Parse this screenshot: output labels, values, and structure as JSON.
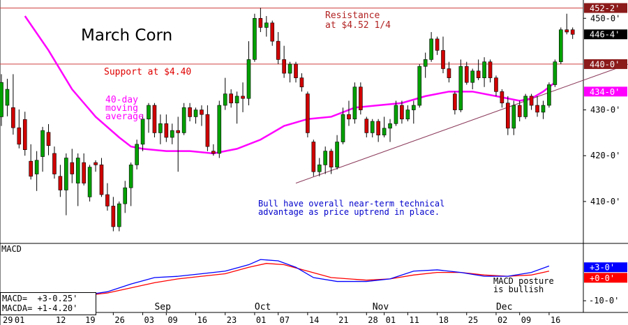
{
  "chart_data": {
    "type": "candlestick",
    "title": "March Corn",
    "annotations": {
      "resistance": "Resistance\nat $4.52 1/4",
      "support": "Support at $4.40",
      "ma_label": "40-day\nmoving\naverage",
      "commentary": "Bull have overall near-term technical\nadvantage as price uptrend in place.",
      "macd_comment": "MACD posture\nis bullish"
    },
    "price_axis": {
      "ticks": [
        {
          "label": "450-0'",
          "value": 450.0
        },
        {
          "label": "430-0'",
          "value": 430.0
        },
        {
          "label": "420-0'",
          "value": 420.0
        },
        {
          "label": "410-0'",
          "value": 410.0
        }
      ],
      "ylim": [
        401.0,
        454.0
      ]
    },
    "price_tags": [
      {
        "label": "452-2'",
        "value": 452.25,
        "color": "#8b1a1a"
      },
      {
        "label": "446-4'",
        "value": 446.5,
        "color": "#000000"
      },
      {
        "label": "440-0'",
        "value": 440.0,
        "color": "#8b1a1a"
      },
      {
        "label": "434-0'",
        "value": 434.0,
        "color": "#ff00ff"
      }
    ],
    "horizontal_lines": [
      {
        "name": "resistance",
        "value": 452.25,
        "color": "#d04040"
      },
      {
        "name": "support",
        "value": 440.0,
        "color": "#d04040"
      }
    ],
    "trendline": {
      "from": {
        "index": 50,
        "value": 414.0
      },
      "to": {
        "index": 88,
        "value": 431.5
      },
      "color": "#8b3a5a"
    },
    "x_axis": {
      "day_labels": [
        {
          "label": "29",
          "index": 0
        },
        {
          "label": "01",
          "index": 2
        },
        {
          "label": "12",
          "index": 9
        },
        {
          "label": "19",
          "index": 14
        },
        {
          "label": "26",
          "index": 19
        },
        {
          "label": "03",
          "index": 24
        },
        {
          "label": "09",
          "index": 28
        },
        {
          "label": "16",
          "index": 33
        },
        {
          "label": "23",
          "index": 38
        },
        {
          "label": "01",
          "index": 43
        },
        {
          "label": "07",
          "index": 47
        },
        {
          "label": "14",
          "index": 52
        },
        {
          "label": "21",
          "index": 57
        },
        {
          "label": "28",
          "index": 62
        },
        {
          "label": "01",
          "index": 65
        },
        {
          "label": "11",
          "index": 69
        },
        {
          "label": "18",
          "index": 74
        },
        {
          "label": "25",
          "index": 79
        },
        {
          "label": "02",
          "index": 84
        },
        {
          "label": "09",
          "index": 88
        },
        {
          "label": "16",
          "index": 93
        }
      ],
      "month_labels": [
        {
          "label": "Sep",
          "index": 26
        },
        {
          "label": "Oct",
          "index": 43
        },
        {
          "label": "Nov",
          "index": 63
        },
        {
          "label": "Dec",
          "index": 84
        }
      ]
    },
    "candles": [
      {
        "o": 428.5,
        "h": 437.8,
        "l": 426.5,
        "c": 436.0
      },
      {
        "o": 431.0,
        "h": 436.8,
        "l": 428.6,
        "c": 434.5
      },
      {
        "o": 430.5,
        "h": 437.8,
        "l": 424.6,
        "c": 426.1
      },
      {
        "o": 426.1,
        "h": 430.1,
        "l": 421.6,
        "c": 422.5
      },
      {
        "o": 427.9,
        "h": 429.6,
        "l": 420.0,
        "c": 421.3
      },
      {
        "o": 418.8,
        "h": 422.5,
        "l": 414.8,
        "c": 415.5
      },
      {
        "o": 416.0,
        "h": 421.0,
        "l": 412.3,
        "c": 419.0
      },
      {
        "o": 419.8,
        "h": 426.3,
        "l": 416.5,
        "c": 425.5
      },
      {
        "o": 425.1,
        "h": 426.9,
        "l": 420.1,
        "c": 422.2
      },
      {
        "o": 420.5,
        "h": 422.0,
        "l": 415.0,
        "c": 416.0
      },
      {
        "o": 415.5,
        "h": 418.0,
        "l": 411.0,
        "c": 412.5
      },
      {
        "o": 412.5,
        "h": 420.5,
        "l": 407.0,
        "c": 419.5
      },
      {
        "o": 418.5,
        "h": 421.5,
        "l": 414.0,
        "c": 416.0
      },
      {
        "o": 414.0,
        "h": 420.5,
        "l": 409.0,
        "c": 419.5
      },
      {
        "o": 418.5,
        "h": 420.5,
        "l": 413.5,
        "c": 414.0
      },
      {
        "o": 411.0,
        "h": 418.0,
        "l": 410.0,
        "c": 417.5
      },
      {
        "o": 418.5,
        "h": 419.0,
        "l": 416.5,
        "c": 418.0
      },
      {
        "o": 418.0,
        "h": 419.5,
        "l": 411.0,
        "c": 411.5
      },
      {
        "o": 411.5,
        "h": 414.0,
        "l": 408.0,
        "c": 409.0
      },
      {
        "o": 409.0,
        "h": 411.0,
        "l": 403.5,
        "c": 404.5
      },
      {
        "o": 404.5,
        "h": 410.0,
        "l": 403.5,
        "c": 409.5
      },
      {
        "o": 409.5,
        "h": 414.5,
        "l": 407.5,
        "c": 413.0
      },
      {
        "o": 413.0,
        "h": 418.5,
        "l": 409.0,
        "c": 418.0
      },
      {
        "o": 418.0,
        "h": 423.5,
        "l": 417.0,
        "c": 422.5
      },
      {
        "o": 422.5,
        "h": 429.0,
        "l": 421.0,
        "c": 428.0
      },
      {
        "o": 428.0,
        "h": 431.5,
        "l": 425.0,
        "c": 431.0
      },
      {
        "o": 431.0,
        "h": 431.5,
        "l": 424.0,
        "c": 425.0
      },
      {
        "o": 425.0,
        "h": 429.0,
        "l": 422.5,
        "c": 427.0
      },
      {
        "o": 427.0,
        "h": 429.0,
        "l": 423.0,
        "c": 424.0
      },
      {
        "o": 424.0,
        "h": 427.0,
        "l": 422.5,
        "c": 425.5
      },
      {
        "o": 425.5,
        "h": 428.5,
        "l": 416.5,
        "c": 425.0
      },
      {
        "o": 425.0,
        "h": 431.5,
        "l": 424.5,
        "c": 430.5
      },
      {
        "o": 430.5,
        "h": 431.5,
        "l": 427.5,
        "c": 428.5
      },
      {
        "o": 428.5,
        "h": 430.5,
        "l": 427.0,
        "c": 430.0
      },
      {
        "o": 430.0,
        "h": 431.0,
        "l": 426.5,
        "c": 429.0
      },
      {
        "o": 429.0,
        "h": 431.0,
        "l": 421.0,
        "c": 422.0
      },
      {
        "o": 421.0,
        "h": 422.5,
        "l": 420.0,
        "c": 420.5
      },
      {
        "o": 420.5,
        "h": 432.0,
        "l": 419.5,
        "c": 431.0
      },
      {
        "o": 431.0,
        "h": 437.0,
        "l": 430.0,
        "c": 433.5
      },
      {
        "o": 433.5,
        "h": 434.5,
        "l": 430.5,
        "c": 431.5
      },
      {
        "o": 431.5,
        "h": 434.0,
        "l": 427.0,
        "c": 433.0
      },
      {
        "o": 433.0,
        "h": 436.0,
        "l": 429.5,
        "c": 432.5
      },
      {
        "o": 432.5,
        "h": 445.0,
        "l": 431.0,
        "c": 441.0
      },
      {
        "o": 441.0,
        "h": 451.0,
        "l": 440.5,
        "c": 450.0
      },
      {
        "o": 450.0,
        "h": 452.3,
        "l": 447.0,
        "c": 448.0
      },
      {
        "o": 448.0,
        "h": 450.5,
        "l": 446.0,
        "c": 449.0
      },
      {
        "o": 449.0,
        "h": 449.5,
        "l": 444.0,
        "c": 445.0
      },
      {
        "o": 445.0,
        "h": 447.0,
        "l": 440.0,
        "c": 441.0
      },
      {
        "o": 441.0,
        "h": 444.0,
        "l": 437.0,
        "c": 438.0
      },
      {
        "o": 438.0,
        "h": 440.5,
        "l": 436.0,
        "c": 440.0
      },
      {
        "o": 440.0,
        "h": 440.5,
        "l": 436.0,
        "c": 437.0
      },
      {
        "o": 437.0,
        "h": 438.0,
        "l": 434.0,
        "c": 435.0
      },
      {
        "o": 433.5,
        "h": 434.0,
        "l": 424.0,
        "c": 425.0
      },
      {
        "o": 423.0,
        "h": 423.5,
        "l": 415.5,
        "c": 416.5
      },
      {
        "o": 416.5,
        "h": 419.5,
        "l": 415.5,
        "c": 418.0
      },
      {
        "o": 418.0,
        "h": 422.0,
        "l": 416.0,
        "c": 421.0
      },
      {
        "o": 421.0,
        "h": 421.5,
        "l": 416.0,
        "c": 417.5
      },
      {
        "o": 417.5,
        "h": 424.5,
        "l": 417.0,
        "c": 423.0
      },
      {
        "o": 423.0,
        "h": 430.5,
        "l": 422.5,
        "c": 429.0
      },
      {
        "o": 429.0,
        "h": 432.0,
        "l": 426.5,
        "c": 428.0
      },
      {
        "o": 428.0,
        "h": 436.0,
        "l": 427.0,
        "c": 435.0
      },
      {
        "o": 435.0,
        "h": 436.0,
        "l": 429.0,
        "c": 430.0
      },
      {
        "o": 428.0,
        "h": 428.5,
        "l": 424.0,
        "c": 425.0
      },
      {
        "o": 425.0,
        "h": 428.0,
        "l": 424.0,
        "c": 427.5
      },
      {
        "o": 427.5,
        "h": 428.0,
        "l": 423.0,
        "c": 424.5
      },
      {
        "o": 424.5,
        "h": 428.5,
        "l": 424.0,
        "c": 426.0
      },
      {
        "o": 426.0,
        "h": 428.0,
        "l": 423.0,
        "c": 427.0
      },
      {
        "o": 427.0,
        "h": 432.0,
        "l": 426.5,
        "c": 431.0
      },
      {
        "o": 431.0,
        "h": 432.0,
        "l": 427.0,
        "c": 428.0
      },
      {
        "o": 428.0,
        "h": 431.0,
        "l": 427.5,
        "c": 430.0
      },
      {
        "o": 430.0,
        "h": 432.0,
        "l": 427.0,
        "c": 431.0
      },
      {
        "o": 431.0,
        "h": 440.0,
        "l": 430.5,
        "c": 439.5
      },
      {
        "o": 439.5,
        "h": 442.5,
        "l": 437.0,
        "c": 441.0
      },
      {
        "o": 441.0,
        "h": 447.0,
        "l": 440.5,
        "c": 445.5
      },
      {
        "o": 445.5,
        "h": 446.0,
        "l": 442.0,
        "c": 443.0
      },
      {
        "o": 443.0,
        "h": 446.0,
        "l": 438.0,
        "c": 439.0
      },
      {
        "o": 439.0,
        "h": 440.5,
        "l": 436.0,
        "c": 437.0
      },
      {
        "o": 433.5,
        "h": 434.0,
        "l": 429.0,
        "c": 430.0
      },
      {
        "o": 430.0,
        "h": 441.0,
        "l": 429.5,
        "c": 439.5
      },
      {
        "o": 439.5,
        "h": 440.5,
        "l": 435.5,
        "c": 436.0
      },
      {
        "o": 436.0,
        "h": 439.0,
        "l": 434.5,
        "c": 438.5
      },
      {
        "o": 438.5,
        "h": 441.0,
        "l": 436.5,
        "c": 437.0
      },
      {
        "o": 437.0,
        "h": 441.5,
        "l": 435.0,
        "c": 440.5
      },
      {
        "o": 440.5,
        "h": 441.0,
        "l": 436.0,
        "c": 437.0
      },
      {
        "o": 437.0,
        "h": 437.5,
        "l": 433.0,
        "c": 434.0
      },
      {
        "o": 434.0,
        "h": 434.5,
        "l": 430.5,
        "c": 431.5
      },
      {
        "o": 431.5,
        "h": 433.0,
        "l": 424.5,
        "c": 426.0
      },
      {
        "o": 426.0,
        "h": 432.0,
        "l": 424.5,
        "c": 431.0
      },
      {
        "o": 431.0,
        "h": 432.0,
        "l": 427.5,
        "c": 428.5
      },
      {
        "o": 428.5,
        "h": 433.5,
        "l": 428.0,
        "c": 433.0
      },
      {
        "o": 433.0,
        "h": 433.5,
        "l": 430.0,
        "c": 431.0
      },
      {
        "o": 431.0,
        "h": 433.0,
        "l": 428.5,
        "c": 429.5
      },
      {
        "o": 429.5,
        "h": 432.0,
        "l": 428.0,
        "c": 431.0
      },
      {
        "o": 431.0,
        "h": 436.0,
        "l": 430.5,
        "c": 435.5
      },
      {
        "o": 435.5,
        "h": 441.0,
        "l": 435.0,
        "c": 440.5
      },
      {
        "o": 440.5,
        "h": 448.0,
        "l": 440.0,
        "c": 447.5
      },
      {
        "o": 447.5,
        "h": 451.0,
        "l": 446.5,
        "c": 447.0
      },
      {
        "o": 447.5,
        "h": 448.0,
        "l": 445.5,
        "c": 446.5
      }
    ],
    "moving_average_40": {
      "name": "40-day moving average",
      "color": "#ff00ff",
      "points": [
        [
          4,
          450.5
        ],
        [
          8,
          443.0
        ],
        [
          12,
          434.5
        ],
        [
          16,
          428.5
        ],
        [
          20,
          424.0
        ],
        [
          22,
          422.0
        ],
        [
          24,
          421.5
        ],
        [
          28,
          421.0
        ],
        [
          32,
          421.0
        ],
        [
          36,
          420.5
        ],
        [
          40,
          421.5
        ],
        [
          44,
          423.5
        ],
        [
          48,
          426.5
        ],
        [
          52,
          428.0
        ],
        [
          56,
          428.5
        ],
        [
          60,
          430.5
        ],
        [
          64,
          431.0
        ],
        [
          68,
          431.5
        ],
        [
          72,
          433.0
        ],
        [
          76,
          434.0
        ],
        [
          80,
          434.0
        ],
        [
          84,
          433.0
        ],
        [
          88,
          432.0
        ],
        [
          90,
          432.5
        ],
        [
          92,
          434.0
        ],
        [
          94,
          436.0
        ]
      ]
    },
    "macd": {
      "panel_label": "MACD",
      "readout_macd": "MACD=  +3-0.25'",
      "readout_macda": "MACDA= +1-4.20'",
      "axis_ticks": [
        {
          "label": "-10-0'",
          "value": -10.0
        }
      ],
      "ylim": [
        -14.0,
        12.0
      ],
      "tags": [
        {
          "label": "+3-0'",
          "value": 3.0,
          "color": "#0000ff"
        },
        {
          "label": "+0-0'",
          "value": 0.0,
          "color": "#ff0000"
        }
      ],
      "macd_line": {
        "name": "MACD",
        "color": "#0000ff",
        "points": [
          [
            0,
            -10.5
          ],
          [
            6,
            -9.5
          ],
          [
            12,
            -8.5
          ],
          [
            18,
            -6.5
          ],
          [
            22,
            -3.5
          ],
          [
            26,
            -1.0
          ],
          [
            30,
            -0.5
          ],
          [
            34,
            0.5
          ],
          [
            38,
            1.5
          ],
          [
            42,
            4.0
          ],
          [
            44,
            6.0
          ],
          [
            47,
            5.5
          ],
          [
            50,
            3.0
          ],
          [
            53,
            -1.0
          ],
          [
            57,
            -2.5
          ],
          [
            62,
            -2.5
          ],
          [
            66,
            -1.5
          ],
          [
            70,
            1.5
          ],
          [
            74,
            2.0
          ],
          [
            78,
            1.0
          ],
          [
            82,
            -0.5
          ],
          [
            86,
            -0.5
          ],
          [
            90,
            1.0
          ],
          [
            93,
            3.5
          ]
        ]
      },
      "signal_line": {
        "name": "MACDA",
        "color": "#ff0000",
        "points": [
          [
            0,
            -10.5
          ],
          [
            8,
            -9.5
          ],
          [
            14,
            -8.0
          ],
          [
            18,
            -7.0
          ],
          [
            22,
            -5.0
          ],
          [
            26,
            -3.0
          ],
          [
            30,
            -1.5
          ],
          [
            34,
            -0.5
          ],
          [
            38,
            0.5
          ],
          [
            42,
            3.0
          ],
          [
            45,
            4.5
          ],
          [
            48,
            4.0
          ],
          [
            52,
            1.5
          ],
          [
            56,
            -1.0
          ],
          [
            62,
            -2.0
          ],
          [
            66,
            -1.5
          ],
          [
            70,
            0.0
          ],
          [
            74,
            1.0
          ],
          [
            78,
            1.0
          ],
          [
            82,
            0.0
          ],
          [
            86,
            -0.5
          ],
          [
            90,
            0.0
          ],
          [
            93,
            1.5
          ]
        ]
      }
    }
  }
}
